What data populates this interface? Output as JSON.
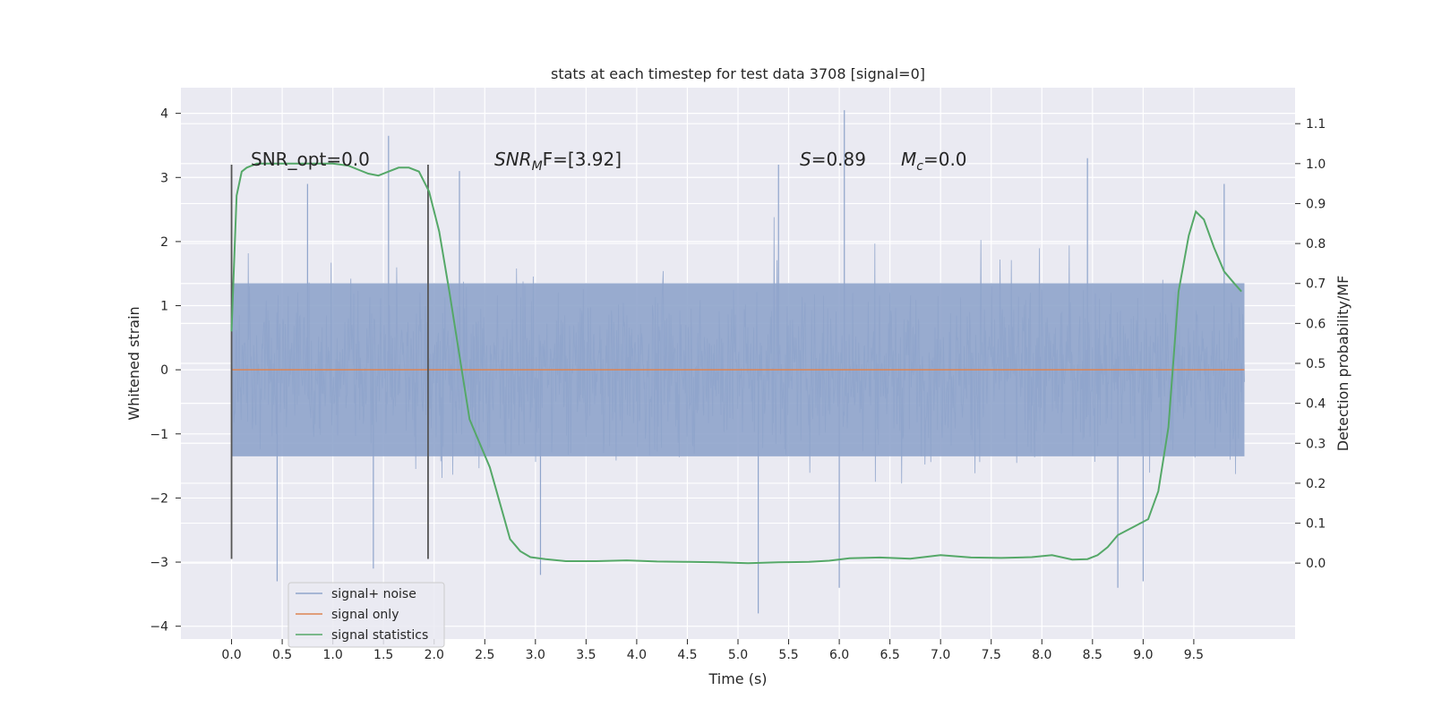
{
  "chart_data": {
    "type": "line",
    "title": "stats at each timestep for test data 3708 [signal=0]",
    "xlabel": "Time (s)",
    "ylabel": "Whitened strain",
    "ylabel_right": "Detection probability/MF",
    "xlim": [
      -0.5,
      10.5
    ],
    "ylim": [
      -4.2,
      4.4
    ],
    "ylim_right": [
      -0.19,
      1.19
    ],
    "x_ticks": [
      "0.0",
      "0.5",
      "1.0",
      "1.5",
      "2.0",
      "2.5",
      "3.0",
      "3.5",
      "4.0",
      "4.5",
      "5.0",
      "5.5",
      "6.0",
      "6.5",
      "7.0",
      "7.5",
      "8.0",
      "8.5",
      "9.0",
      "9.5"
    ],
    "y_ticks": [
      "4",
      "3",
      "2",
      "1",
      "0",
      "−1",
      "−2",
      "−3",
      "−4"
    ],
    "y_ticks_right": [
      "1.1",
      "1.0",
      "0.9",
      "0.8",
      "0.7",
      "0.6",
      "0.5",
      "0.4",
      "0.3",
      "0.2",
      "0.1",
      "0.0"
    ],
    "grid": true,
    "legend_position": "lower-left",
    "annotations": {
      "snr_opt": "SNR_opt=0.0",
      "snr_mf_label": "SNR",
      "snr_mf_sub": "M",
      "snr_mf_value": "F=[3.92]",
      "s_label": "S",
      "s_value": "=0.89",
      "mc_label": "M",
      "mc_sub": "c",
      "mc_value": "=0.0"
    },
    "vertical_markers": {
      "x": [
        0.0,
        1.94
      ],
      "ymin": -2.95,
      "ymax": 3.2
    },
    "series": [
      {
        "name": "signal+ noise",
        "color": "#8fa4cb",
        "description_kind": "dense noise",
        "x_range": [
          0.0,
          10.0
        ],
        "band": [
          -1.35,
          1.35
        ],
        "peaks": [
          [
            0.75,
            2.9
          ],
          [
            1.55,
            3.65
          ],
          [
            1.4,
            -3.1
          ],
          [
            3.05,
            -3.2
          ],
          [
            5.2,
            -3.8
          ],
          [
            5.4,
            3.2
          ],
          [
            6.05,
            4.05
          ],
          [
            6.0,
            -3.4
          ],
          [
            8.45,
            3.3
          ],
          [
            8.75,
            -3.4
          ],
          [
            9.0,
            -3.3
          ],
          [
            9.8,
            2.9
          ],
          [
            0.45,
            -3.3
          ],
          [
            2.25,
            3.1
          ]
        ]
      },
      {
        "name": "signal only",
        "color": "#dd8452",
        "x": [
          0.0,
          10.0
        ],
        "values": [
          0.0,
          0.0
        ]
      },
      {
        "name": "signal statistics",
        "color": "#55a868",
        "axis": "right",
        "x": [
          0.0,
          0.05,
          0.1,
          0.15,
          0.25,
          0.4,
          0.6,
          0.8,
          1.0,
          1.15,
          1.25,
          1.35,
          1.45,
          1.55,
          1.65,
          1.75,
          1.85,
          1.95,
          2.05,
          2.15,
          2.25,
          2.35,
          2.45,
          2.55,
          2.65,
          2.75,
          2.85,
          2.95,
          3.1,
          3.3,
          3.6,
          3.9,
          4.2,
          4.5,
          4.8,
          5.1,
          5.4,
          5.7,
          5.9,
          6.1,
          6.4,
          6.7,
          7.0,
          7.3,
          7.6,
          7.9,
          8.1,
          8.3,
          8.45,
          8.55,
          8.65,
          8.75,
          8.9,
          9.05,
          9.15,
          9.25,
          9.35,
          9.45,
          9.52,
          9.6,
          9.7,
          9.8,
          9.9,
          9.97
        ],
        "values": [
          0.58,
          0.92,
          0.98,
          0.99,
          1.0,
          1.0,
          1.0,
          1.0,
          1.0,
          0.995,
          0.985,
          0.975,
          0.97,
          0.98,
          0.99,
          0.99,
          0.98,
          0.93,
          0.83,
          0.68,
          0.52,
          0.36,
          0.3,
          0.24,
          0.15,
          0.06,
          0.03,
          0.015,
          0.01,
          0.005,
          0.005,
          0.007,
          0.004,
          0.003,
          0.002,
          0.0,
          0.002,
          0.003,
          0.006,
          0.012,
          0.014,
          0.011,
          0.02,
          0.014,
          0.013,
          0.015,
          0.02,
          0.009,
          0.01,
          0.02,
          0.04,
          0.07,
          0.09,
          0.11,
          0.18,
          0.34,
          0.68,
          0.82,
          0.88,
          0.86,
          0.79,
          0.73,
          0.7,
          0.68
        ]
      }
    ]
  }
}
